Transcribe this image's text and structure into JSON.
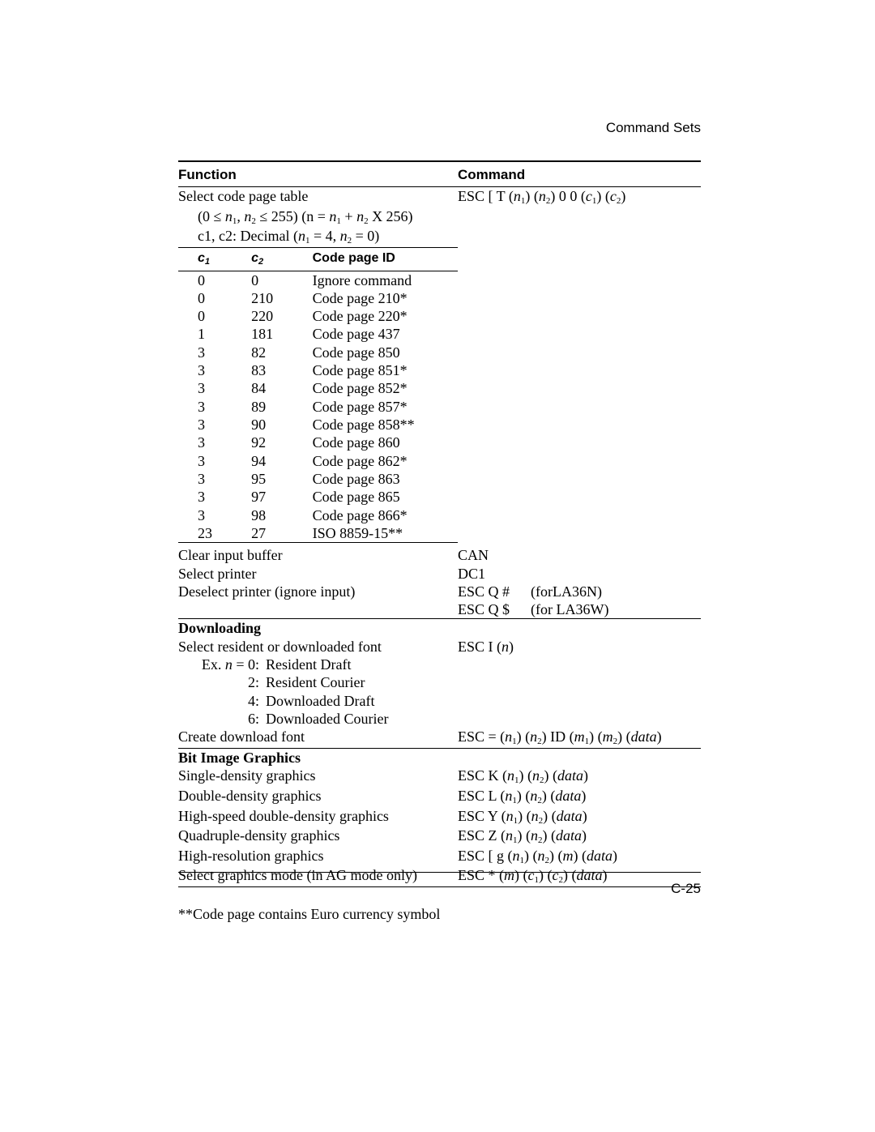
{
  "running_head": "Command Sets",
  "page_number": "C-25",
  "table_headers": {
    "function": "Function",
    "command": "Command"
  },
  "select_code_page": {
    "title": "Select code page table",
    "constraint_a": "(0 ≤ ",
    "constraint_n1": "n",
    "constraint_b": ", ",
    "constraint_n2": "n",
    "constraint_c": " ≤ 255) (n = ",
    "constraint_n1b": "n",
    "constraint_d": " + ",
    "constraint_n2b": "n",
    "constraint_e": "  X  256)",
    "line2_a": "c1, c2: Decimal (",
    "line2_n1": "n",
    "line2_b": " = 4,   ",
    "line2_n2": "n",
    "line2_c": "  = 0)",
    "cmd_pre": "ESC [ T (",
    "cmd_n1": "n",
    "cmd_mid1": ") (",
    "cmd_n2": "n",
    "cmd_mid2": ") 0 0 (",
    "cmd_c1": "c",
    "cmd_mid3": ") (",
    "cmd_c2": "c",
    "cmd_post": ")"
  },
  "inner_headers": {
    "c1": "c",
    "c1sub": "1",
    "c2": "c",
    "c2sub": "2",
    "id": "Code page ID"
  },
  "code_pages": [
    {
      "c1": "0",
      "c2": "0",
      "id": "Ignore command"
    },
    {
      "c1": "0",
      "c2": "210",
      "id": "Code page 210*"
    },
    {
      "c1": "0",
      "c2": "220",
      "id": "Code page 220*"
    },
    {
      "c1": "1",
      "c2": "181",
      "id": "Code page 437"
    },
    {
      "c1": "3",
      "c2": "82",
      "id": "Code page 850"
    },
    {
      "c1": "3",
      "c2": "83",
      "id": "Code page 851*"
    },
    {
      "c1": "3",
      "c2": "84",
      "id": "Code page 852*"
    },
    {
      "c1": "3",
      "c2": "89",
      "id": "Code page 857*"
    },
    {
      "c1": "3",
      "c2": "90",
      "id": "Code page 858**"
    },
    {
      "c1": "3",
      "c2": "92",
      "id": "Code page 860"
    },
    {
      "c1": "3",
      "c2": "94",
      "id": "Code page 862*"
    },
    {
      "c1": "3",
      "c2": "95",
      "id": "Code page 863"
    },
    {
      "c1": "3",
      "c2": "97",
      "id": "Code page 865"
    },
    {
      "c1": "3",
      "c2": "98",
      "id": "Code page 866*"
    },
    {
      "c1": "23",
      "c2": "27",
      "id": "ISO 8859-15**"
    }
  ],
  "misc": {
    "clear_f": "Clear input buffer",
    "clear_c": "CAN",
    "selp_f": "Select printer",
    "selp_c": "DC1",
    "desel_f": "Deselect printer (ignore input)",
    "desel_c1a": "ESC Q #",
    "desel_c1b": "(forLA36N)",
    "desel_c2a": "ESC Q $",
    "desel_c2b": "(for LA36W)"
  },
  "downloading": {
    "heading": "Downloading",
    "sel_f": "Select resident or downloaded font",
    "sel_c_pre": "ESC I (",
    "sel_c_n": "n",
    "sel_c_post": ")",
    "ex_lbl0_a": "Ex.  ",
    "ex_lbl0_n": "n",
    "ex_lbl0_b": " = 0:",
    "ex_val0": "Resident Draft",
    "ex_lbl2": "2:",
    "ex_val2": "Resident Courier",
    "ex_lbl4": "4:",
    "ex_val4": "Downloaded Draft",
    "ex_lbl6": "6:",
    "ex_val6": "Downloaded Courier",
    "create_f": "Create download font",
    "create_c_pre": "ESC = (",
    "create_c_n1": "n",
    "create_c_m1": ") (",
    "create_c_n2": "n",
    "create_c_m2": ") ID (",
    "create_c_m": "m",
    "create_c_m3": ") (",
    "create_c_m4": "m",
    "create_c_m5": ") (",
    "create_c_data": "data",
    "create_c_post": ")"
  },
  "bitimage": {
    "heading": "Bit Image Graphics",
    "r1_f": "Single-density graphics",
    "r1_c": {
      "pre": "ESC K (",
      "n1": "n",
      "m1": ") (",
      "n2": "n",
      "m2": ") (",
      "d": "data",
      "post": ")"
    },
    "r2_f": "Double-density graphics",
    "r2_c": {
      "pre": "ESC L (",
      "n1": "n",
      "m1": ") (",
      "n2": "n",
      "m2": ") (",
      "d": "data",
      "post": ")"
    },
    "r3_f": "High-speed double-density graphics",
    "r3_c": {
      "pre": "ESC Y (",
      "n1": "n",
      "m1": ") (",
      "n2": "n",
      "m2": ") (",
      "d": "data",
      "post": ")"
    },
    "r4_f": "Quadruple-density graphics",
    "r4_c": {
      "pre": "ESC Z (",
      "n1": "n",
      "m1": ") (",
      "n2": "n",
      "m2": ") (",
      "d": "data",
      "post": ")"
    },
    "r5_f": "High-resolution graphics",
    "r5_c": {
      "pre": "ESC [ g (",
      "n1": "n",
      "m1": ") (",
      "n2": "n",
      "m2": ") (",
      "m": "m",
      "m3": ") (",
      "d": "data",
      "post": ")"
    },
    "r6_f": "Select graphics mode (in AG mode only)",
    "r6_c": {
      "pre": "ESC * (",
      "m": "m",
      "m1": ") (",
      "c1": "c",
      "m2": ") (",
      "c2": "c",
      "m3": ") (",
      "d": "data",
      "post": ")"
    }
  },
  "footnote": "**Code page contains Euro currency symbol"
}
